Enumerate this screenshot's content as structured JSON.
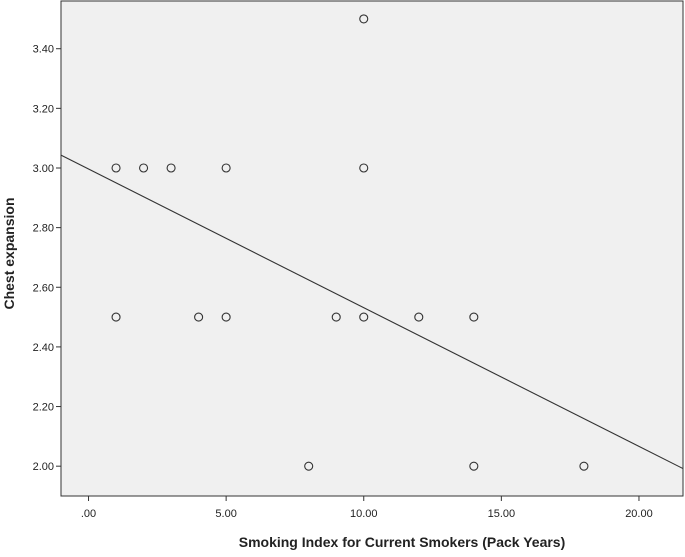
{
  "chart_data": {
    "type": "scatter",
    "xlabel": "Smoking Index for Current Smokers (Pack Years)",
    "ylabel": "Chest expansion",
    "xlim": [
      -1.0,
      21.6
    ],
    "ylim": [
      1.9,
      3.56
    ],
    "x_ticks": [
      0,
      5,
      10,
      15,
      20
    ],
    "x_tick_labels": [
      ".00",
      "5.00",
      "10.00",
      "15.00",
      "20.00"
    ],
    "y_ticks": [
      2.0,
      2.2,
      2.4,
      2.6,
      2.8,
      3.0,
      3.2,
      3.4
    ],
    "y_tick_labels": [
      "2.00",
      "2.20",
      "2.40",
      "2.60",
      "2.80",
      "3.00",
      "3.20",
      "3.40"
    ],
    "grid": false,
    "legend": "none",
    "points": [
      {
        "x": 1,
        "y": 3.0
      },
      {
        "x": 2,
        "y": 3.0
      },
      {
        "x": 3,
        "y": 3.0
      },
      {
        "x": 5,
        "y": 3.0
      },
      {
        "x": 10,
        "y": 3.0
      },
      {
        "x": 10,
        "y": 3.5
      },
      {
        "x": 1,
        "y": 2.5
      },
      {
        "x": 4,
        "y": 2.5
      },
      {
        "x": 5,
        "y": 2.5
      },
      {
        "x": 9,
        "y": 2.5
      },
      {
        "x": 10,
        "y": 2.5
      },
      {
        "x": 12,
        "y": 2.5
      },
      {
        "x": 14,
        "y": 2.5
      },
      {
        "x": 8,
        "y": 2.0
      },
      {
        "x": 14,
        "y": 2.0
      },
      {
        "x": 18,
        "y": 2.0
      }
    ],
    "fit_line": {
      "x": [
        -1.0,
        21.6
      ],
      "y": [
        3.043,
        1.992
      ]
    },
    "colors": {
      "marker": "#333333",
      "line": "#333333",
      "axis": "#333333",
      "plot_bg": "#f0f0f0",
      "page_bg": "#ffffff"
    }
  }
}
